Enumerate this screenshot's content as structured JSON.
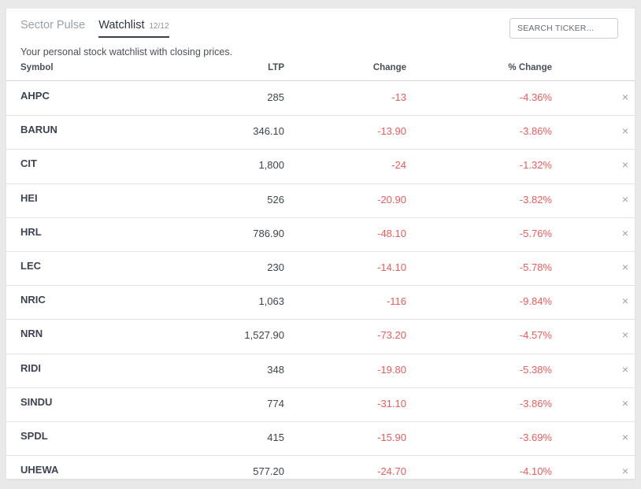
{
  "tabs": {
    "sector_pulse": "Sector Pulse",
    "watchlist": "Watchlist",
    "watchlist_count": "12/12"
  },
  "search": {
    "placeholder": "SEARCH TICKER..."
  },
  "description": "Your personal stock watchlist with closing prices.",
  "columns": {
    "symbol": "Symbol",
    "ltp": "LTP",
    "change": "Change",
    "pct_change": "% Change"
  },
  "remove_glyph": "×",
  "colors": {
    "negative": "#ef5b5b",
    "text": "#3d4350",
    "muted": "#9aa0aa"
  },
  "rows": [
    {
      "symbol": "AHPC",
      "ltp": "285",
      "change": "-13",
      "pct": "-4.36%"
    },
    {
      "symbol": "BARUN",
      "ltp": "346.10",
      "change": "-13.90",
      "pct": "-3.86%"
    },
    {
      "symbol": "CIT",
      "ltp": "1,800",
      "change": "-24",
      "pct": "-1.32%"
    },
    {
      "symbol": "HEI",
      "ltp": "526",
      "change": "-20.90",
      "pct": "-3.82%"
    },
    {
      "symbol": "HRL",
      "ltp": "786.90",
      "change": "-48.10",
      "pct": "-5.76%"
    },
    {
      "symbol": "LEC",
      "ltp": "230",
      "change": "-14.10",
      "pct": "-5.78%"
    },
    {
      "symbol": "NRIC",
      "ltp": "1,063",
      "change": "-116",
      "pct": "-9.84%"
    },
    {
      "symbol": "NRN",
      "ltp": "1,527.90",
      "change": "-73.20",
      "pct": "-4.57%"
    },
    {
      "symbol": "RIDI",
      "ltp": "348",
      "change": "-19.80",
      "pct": "-5.38%"
    },
    {
      "symbol": "SINDU",
      "ltp": "774",
      "change": "-31.10",
      "pct": "-3.86%"
    },
    {
      "symbol": "SPDL",
      "ltp": "415",
      "change": "-15.90",
      "pct": "-3.69%"
    },
    {
      "symbol": "UHEWA",
      "ltp": "577.20",
      "change": "-24.70",
      "pct": "-4.10%"
    }
  ]
}
